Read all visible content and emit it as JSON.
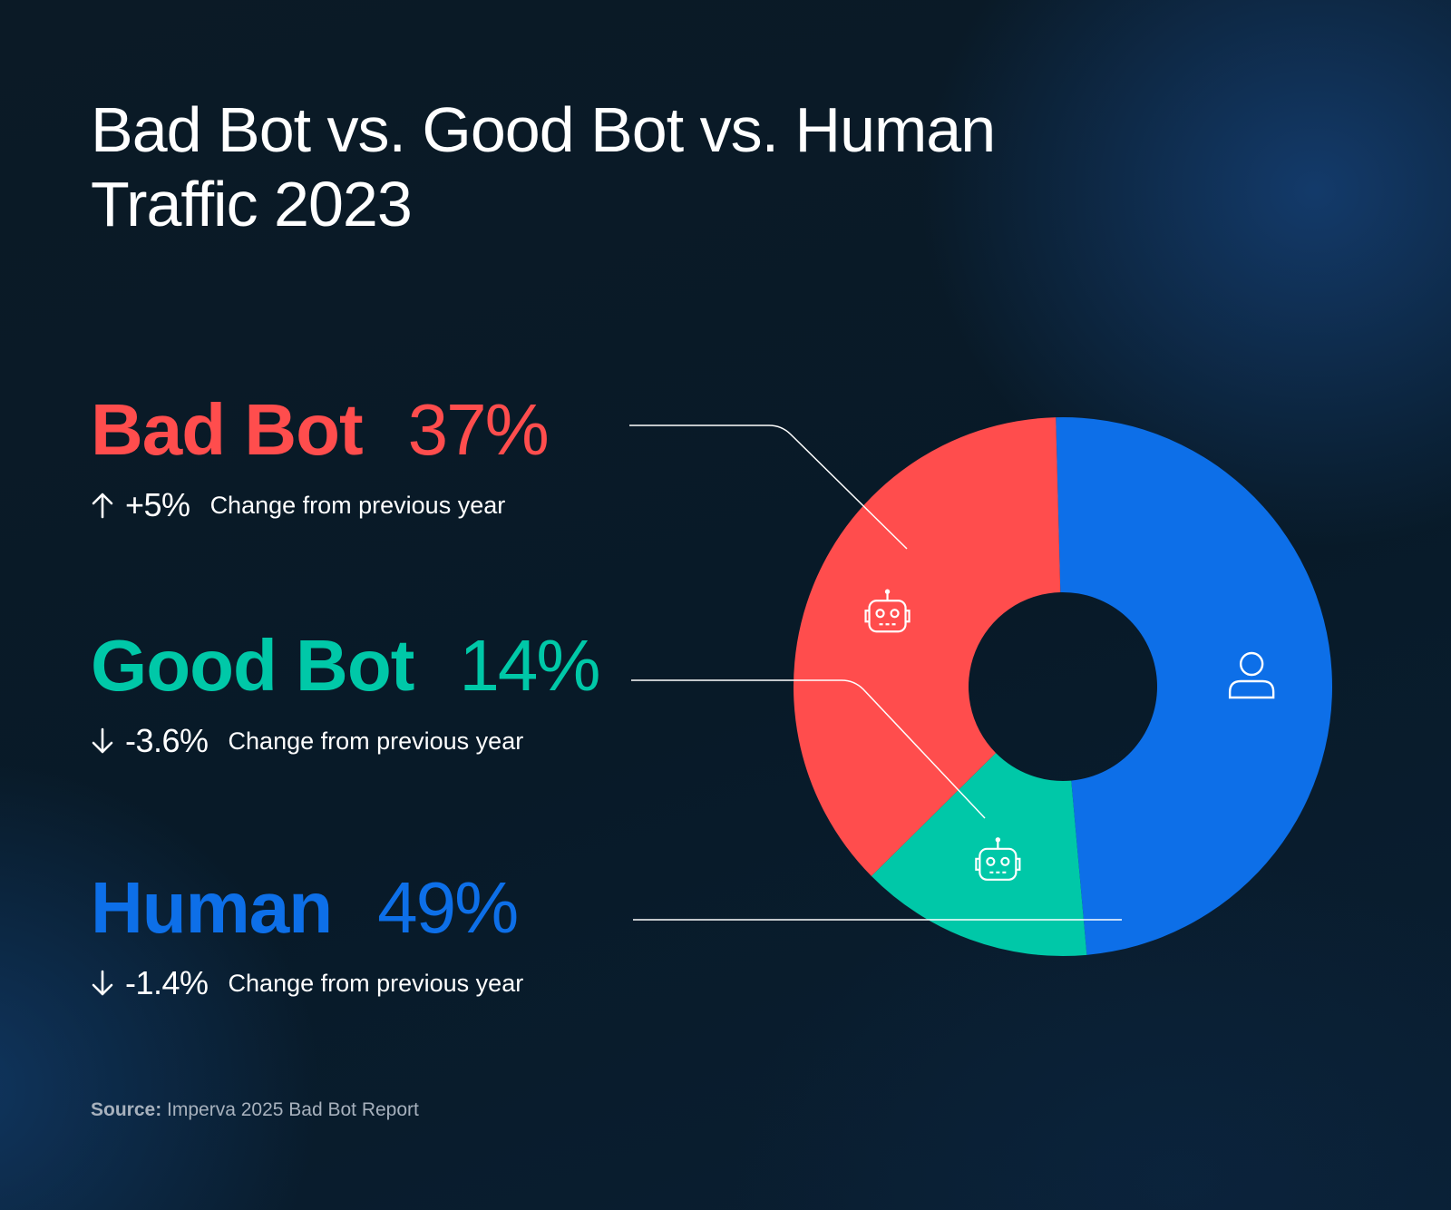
{
  "title": {
    "line1": "Bad Bot vs. Good Bot vs. Human",
    "line2": "Traffic 2023"
  },
  "categories": [
    {
      "id": "bad",
      "label": "Bad Bot",
      "value_text": "37%",
      "direction": "up",
      "delta": "+5%",
      "change_label": "Change from previous year",
      "color": "#ff4d4d"
    },
    {
      "id": "good",
      "label": "Good Bot",
      "value_text": "14%",
      "direction": "down",
      "delta": "-3.6%",
      "change_label": "Change from previous year",
      "color": "#00c8a8"
    },
    {
      "id": "human",
      "label": "Human",
      "value_text": "49%",
      "direction": "down",
      "delta": "-1.4%",
      "change_label": "Change from previous year",
      "color": "#0d6fe8"
    }
  ],
  "source": {
    "prefix": "Source:",
    "text": " Imperva 2025 Bad Bot Report"
  },
  "chart_data": {
    "type": "pie",
    "style": "donut",
    "slices": [
      {
        "name": "Human",
        "value": 49,
        "color": "#0d6fe8",
        "icon": "person-icon"
      },
      {
        "name": "Good Bot",
        "value": 14,
        "color": "#00c8a8",
        "icon": "robot-icon"
      },
      {
        "name": "Bad Bot",
        "value": 37,
        "color": "#ff4d4d",
        "icon": "robot-icon"
      }
    ],
    "legend_placement": "left"
  }
}
